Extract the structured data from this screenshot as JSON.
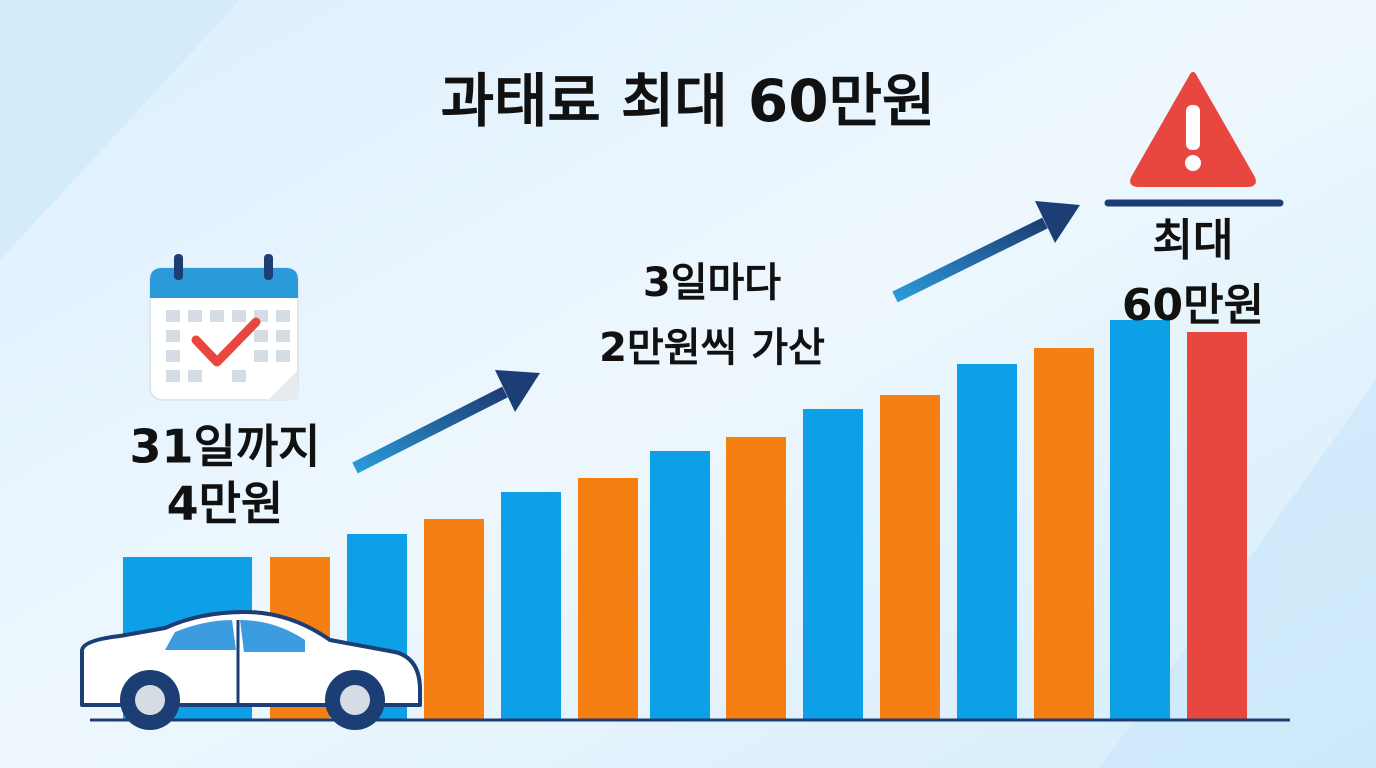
{
  "title": "과태료 최대 60만원",
  "labels": {
    "start": [
      "31일까지",
      "4만원"
    ],
    "step": [
      "3일마다",
      "2만원씩 가산"
    ],
    "max": [
      "최대",
      "60만원"
    ]
  }
}
